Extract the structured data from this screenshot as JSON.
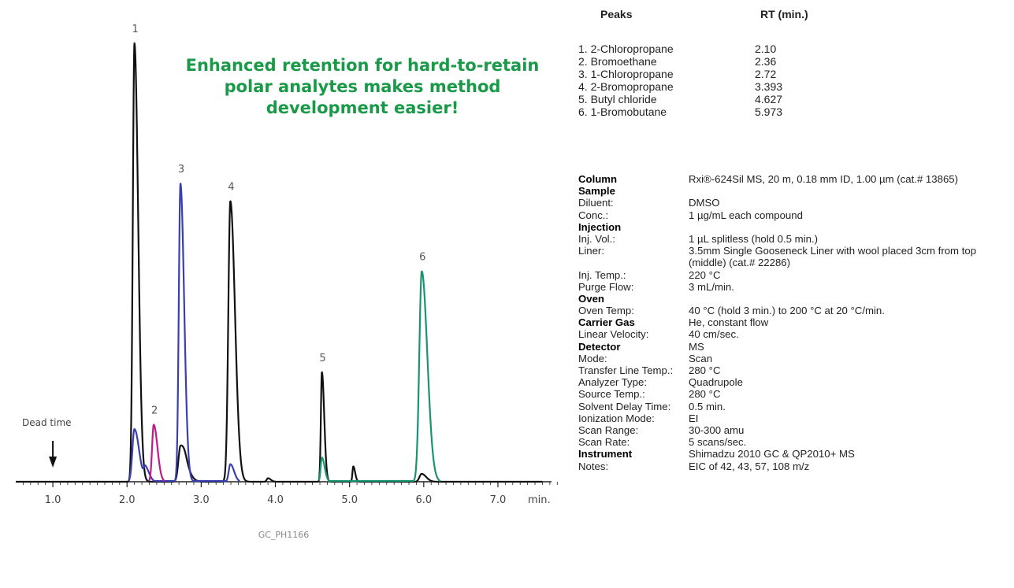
{
  "headline": {
    "line1": "Enhanced retention for hard-to-retain",
    "line2": "polar analytes makes method",
    "line3": "development easier!"
  },
  "figure_id": "GC_PH1166",
  "dead_time_label": "Dead time",
  "chart_data": {
    "type": "line",
    "title": "",
    "xlabel": "min.",
    "ylabel": "",
    "xlim": [
      0.5,
      7.85
    ],
    "ylim": [
      0,
      1
    ],
    "grid": false,
    "x_ticks": [
      1.0,
      2.0,
      3.0,
      4.0,
      5.0,
      6.0,
      7.0
    ],
    "x_tick_labels": [
      "1.0",
      "2.0",
      "3.0",
      "4.0",
      "5.0",
      "6.0",
      "7.0"
    ],
    "dead_time_x": 1.0,
    "peak_labels": [
      "1",
      "2",
      "3",
      "4",
      "5",
      "6"
    ],
    "series": [
      {
        "color": "#111111",
        "peaks": [
          {
            "label": "1",
            "rt": 2.1,
            "height": 1.0,
            "width": 0.04
          },
          {
            "rt": 2.72,
            "height": 0.08,
            "width": 0.05
          },
          {
            "rt": 2.79,
            "height": 0.02,
            "width": 0.06
          },
          {
            "label": "4",
            "rt": 3.393,
            "height": 0.64,
            "width": 0.05
          },
          {
            "rt": 3.9,
            "height": 0.008,
            "width": 0.03
          },
          {
            "label": "5",
            "rt": 4.627,
            "height": 0.25,
            "width": 0.025
          },
          {
            "rt": 5.05,
            "height": 0.035,
            "width": 0.02
          },
          {
            "rt": 5.97,
            "height": 0.018,
            "width": 0.05
          }
        ]
      },
      {
        "color": "#3a3fb0",
        "peaks": [
          {
            "rt": 2.1,
            "height": 0.12,
            "width": 0.05
          },
          {
            "rt": 2.25,
            "height": 0.03,
            "width": 0.04
          },
          {
            "rt": 2.72,
            "height": 0.68,
            "width": 0.04
          },
          {
            "rt": 3.393,
            "height": 0.04,
            "width": 0.04
          }
        ]
      },
      {
        "color": "#c01c86",
        "peaks": [
          {
            "label": "2",
            "rt": 2.36,
            "height": 0.13,
            "width": 0.04
          }
        ]
      },
      {
        "color": "#1a9470",
        "peaks": [
          {
            "rt": 4.627,
            "height": 0.055,
            "width": 0.03
          },
          {
            "label": "6",
            "rt": 5.973,
            "height": 0.48,
            "width": 0.06
          }
        ]
      }
    ]
  },
  "peaks_table": {
    "header_name": "Peaks",
    "header_rt": "RT (min.)",
    "rows": [
      {
        "name": "1. 2-Chloropropane",
        "rt": "2.10"
      },
      {
        "name": "2. Bromoethane",
        "rt": "2.36"
      },
      {
        "name": "3. 1-Chloropropane",
        "rt": "2.72"
      },
      {
        "name": "4. 2-Bromopropane",
        "rt": "3.393"
      },
      {
        "name": "5. Butyl chloride",
        "rt": "4.627"
      },
      {
        "name": "6. 1-Bromobutane",
        "rt": "5.973"
      }
    ]
  },
  "params": [
    {
      "label": "Column",
      "value": "Rxi®-624Sil MS, 20 m, 0.18 mm ID, 1.00 µm (cat.# 13865)",
      "header": true
    },
    {
      "label": "Sample",
      "value": "",
      "header": true
    },
    {
      "label": "Diluent:",
      "value": "DMSO"
    },
    {
      "label": "Conc.:",
      "value": "1 µg/mL each compound"
    },
    {
      "label": "Injection",
      "value": "",
      "header": true
    },
    {
      "label": "Inj. Vol.:",
      "value": "1 µL splitless (hold 0.5 min.)"
    },
    {
      "label": "Liner:",
      "value": "3.5mm Single Gooseneck Liner with wool placed 3cm from top (middle) (cat.# 22286)",
      "wrap": true
    },
    {
      "label": "Inj. Temp.:",
      "value": "220 °C"
    },
    {
      "label": "Purge Flow:",
      "value": "3 mL/min."
    },
    {
      "label": "Oven",
      "value": "",
      "header": true
    },
    {
      "label": "Oven Temp:",
      "value": "40 °C (hold 3 min.) to 200 °C at 20 °C/min."
    },
    {
      "label": "Carrier Gas",
      "value": "He, constant flow",
      "header": true
    },
    {
      "label": "Linear Velocity:",
      "value": "40 cm/sec."
    },
    {
      "label": "Detector",
      "value": "MS",
      "header": true
    },
    {
      "label": "Mode:",
      "value": "Scan"
    },
    {
      "label": "Transfer Line Temp.:",
      "value": "280 °C"
    },
    {
      "label": "Analyzer Type:",
      "value": "Quadrupole"
    },
    {
      "label": "Source Temp.:",
      "value": "280 °C"
    },
    {
      "label": "Solvent Delay Time:",
      "value": "0.5 min."
    },
    {
      "label": "Ionization Mode:",
      "value": "EI"
    },
    {
      "label": "Scan Range:",
      "value": "30-300 amu"
    },
    {
      "label": "Scan Rate:",
      "value": "5 scans/sec."
    },
    {
      "label": "Instrument",
      "value": "Shimadzu 2010 GC & QP2010+ MS",
      "header": true
    },
    {
      "label": "Notes:",
      "value": "EIC of 42, 43, 57, 108 m/z"
    }
  ]
}
